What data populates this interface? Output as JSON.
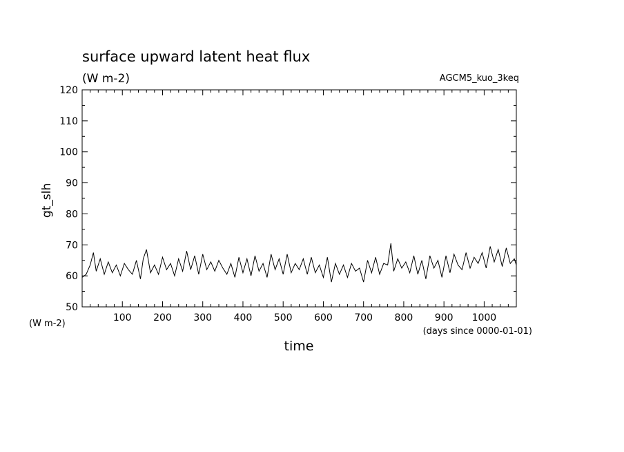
{
  "chart_data": {
    "type": "line",
    "title": "surface upward latent heat flux",
    "subtitle": "(W m-2)",
    "model_label": "AGCM5_kuo_3keq",
    "xlabel": "time",
    "xunits": "(days since 0000-01-01)",
    "ylabel": "gt_slh",
    "yunits": "(W m-2)",
    "xlim": [
      0,
      1080
    ],
    "ylim": [
      50,
      120
    ],
    "x_major_ticks": [
      100,
      200,
      300,
      400,
      500,
      600,
      700,
      800,
      900,
      1000
    ],
    "x_tick_labels": [
      "100",
      "200",
      "300",
      "400",
      "500",
      "600",
      "700",
      "800",
      "900",
      "1000"
    ],
    "y_major_ticks": [
      50,
      60,
      70,
      80,
      90,
      100,
      110,
      120
    ],
    "y_tick_labels": [
      "50",
      "60",
      "70",
      "80",
      "90",
      "100",
      "110",
      "120"
    ],
    "grid": false,
    "series": [
      {
        "line_color": "#000000",
        "x": [
          0,
          10,
          20,
          28,
          35,
          45,
          55,
          65,
          75,
          85,
          95,
          105,
          115,
          125,
          135,
          145,
          152,
          160,
          170,
          180,
          190,
          200,
          210,
          220,
          230,
          240,
          250,
          260,
          270,
          280,
          290,
          300,
          310,
          320,
          330,
          340,
          350,
          360,
          370,
          380,
          390,
          400,
          410,
          420,
          430,
          440,
          450,
          460,
          470,
          480,
          490,
          500,
          510,
          520,
          530,
          540,
          550,
          560,
          570,
          580,
          590,
          600,
          610,
          620,
          630,
          640,
          650,
          660,
          670,
          680,
          690,
          700,
          710,
          720,
          730,
          740,
          750,
          760,
          768,
          775,
          785,
          795,
          805,
          815,
          825,
          835,
          845,
          855,
          865,
          875,
          885,
          895,
          905,
          915,
          925,
          935,
          945,
          955,
          965,
          975,
          985,
          995,
          1005,
          1015,
          1025,
          1035,
          1045,
          1055,
          1065,
          1075,
          1080
        ],
        "y": [
          59.5,
          60.5,
          63.5,
          67.5,
          61.5,
          65.5,
          60.5,
          64.5,
          61.0,
          63.5,
          60.0,
          64.0,
          62.0,
          60.5,
          65.0,
          59.0,
          65.5,
          68.5,
          61.0,
          63.5,
          60.5,
          66.0,
          62.0,
          64.0,
          60.0,
          65.5,
          61.5,
          68.0,
          62.0,
          66.5,
          60.5,
          67.0,
          62.0,
          64.5,
          61.5,
          65.0,
          62.5,
          60.5,
          64.0,
          59.5,
          66.0,
          61.0,
          65.5,
          60.0,
          66.5,
          61.5,
          64.0,
          59.5,
          67.0,
          62.0,
          65.5,
          60.5,
          67.0,
          61.0,
          64.0,
          62.0,
          65.5,
          60.5,
          66.0,
          61.0,
          63.5,
          59.5,
          66.0,
          58.0,
          64.0,
          60.5,
          63.5,
          59.5,
          64.0,
          61.5,
          62.5,
          58.0,
          65.0,
          61.0,
          66.0,
          60.5,
          64.0,
          63.5,
          70.5,
          61.5,
          65.5,
          62.5,
          64.5,
          61.0,
          66.5,
          60.5,
          65.0,
          59.0,
          66.5,
          62.5,
          65.0,
          59.5,
          66.5,
          61.0,
          67.0,
          63.5,
          62.0,
          67.5,
          62.5,
          66.0,
          64.0,
          67.5,
          62.5,
          69.5,
          64.5,
          68.5,
          63.0,
          69.0,
          64.0,
          65.5,
          63.5
        ]
      }
    ]
  }
}
